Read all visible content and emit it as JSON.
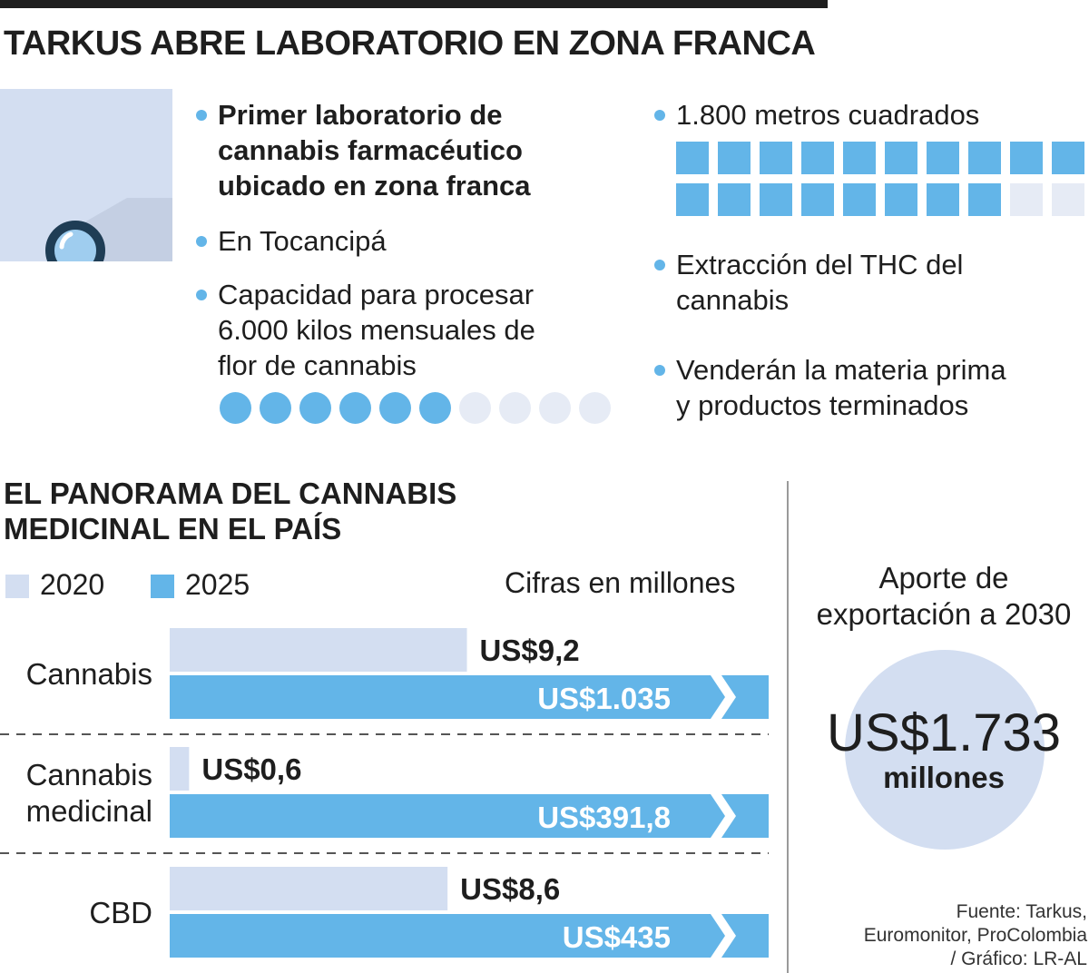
{
  "title": "TARKUS ABRE LABORATORIO EN ZONA FRANCA",
  "facts_left": [
    {
      "lines": [
        "Primer laboratorio de",
        "cannabis farmacéutico",
        "ubicado en zona franca"
      ],
      "bold": true
    },
    {
      "lines": [
        "En Tocancipá"
      ],
      "bold": false
    },
    {
      "lines": [
        "Capacidad para procesar",
        "6.000 kilos mensuales de",
        "flor de cannabis"
      ],
      "bold": false
    }
  ],
  "facts_right": [
    {
      "lines": [
        "1.800 metros cuadrados"
      ]
    },
    {
      "lines": [
        "Extracción del THC del",
        "cannabis"
      ]
    },
    {
      "lines": [
        "Venderán la materia prima",
        "y productos terminados"
      ]
    }
  ],
  "capacity_dots": {
    "filled": 6,
    "total": 10
  },
  "area_squares": {
    "filled": 18,
    "total": 20
  },
  "icons": {
    "lens_panel": "magnifying-glass-icon"
  },
  "colors": {
    "light": "#d3def1",
    "accent": "#63b5e8",
    "dark": "#1e1e1e",
    "icon": "#1f3d55",
    "icon_glass": "#9fcdef"
  },
  "section_title": [
    "EL PANORAMA DEL CANNABIS",
    "MEDICINAL EN EL PAÍS"
  ],
  "chart_data": {
    "type": "bar",
    "orientation": "horizontal",
    "units_note": "Cifras en millones",
    "categories": [
      [
        "Cannabis"
      ],
      [
        "Cannabis",
        "medicinal"
      ],
      [
        "CBD"
      ]
    ],
    "series": [
      {
        "name": "2020",
        "color": "#d3def1",
        "values": [
          9.2,
          0.6,
          8.6
        ],
        "labels": [
          "US$9,2",
          "US$0,6",
          "US$8,6"
        ]
      },
      {
        "name": "2025",
        "color": "#63b5e8",
        "values": [
          1035,
          391.8,
          435
        ],
        "labels": [
          "US$1.035",
          "US$391,8",
          "US$435"
        ]
      }
    ],
    "scale_note": "2025 bars drawn with broken axis",
    "legend_position": "top-left"
  },
  "aporte": {
    "title_lines": [
      "Aporte de",
      "exportación a 2030"
    ],
    "value": "US$1.733",
    "unit": "millones"
  },
  "source_lines": [
    "Fuente: Tarkus,",
    "Euromonitor, ProColombia",
    "/ Gráfico: LR-AL"
  ]
}
